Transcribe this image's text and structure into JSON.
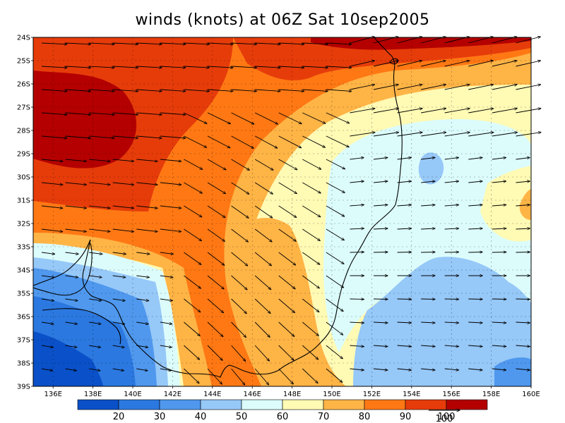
{
  "title": "winds (knots) at 06Z Sat 10sep2005",
  "lat_labels": [
    "24S",
    "25S",
    "26S",
    "27S",
    "28S",
    "29S",
    "30S",
    "31S",
    "32S",
    "33S",
    "34S",
    "35S",
    "36S",
    "37S",
    "38S",
    "39S"
  ],
  "lon_labels": [
    "136E",
    "138E",
    "140E",
    "142E",
    "144E",
    "146E",
    "148E",
    "150E",
    "152E",
    "154E",
    "156E",
    "158E",
    "160E"
  ],
  "colorbar": {
    "colors": [
      "#0a50c8",
      "#2b78e0",
      "#4f98ee",
      "#96c8f8",
      "#dcfcfc",
      "#fffab4",
      "#ffb446",
      "#ff7814",
      "#e63c0a",
      "#b40000"
    ],
    "labels": [
      "20",
      "30",
      "40",
      "50",
      "60",
      "70",
      "80",
      "90",
      "100"
    ]
  },
  "vector_key": {
    "label": "100"
  },
  "colors": {
    "ocean_cool": "#dcfcfc",
    "coast": "#000000"
  }
}
